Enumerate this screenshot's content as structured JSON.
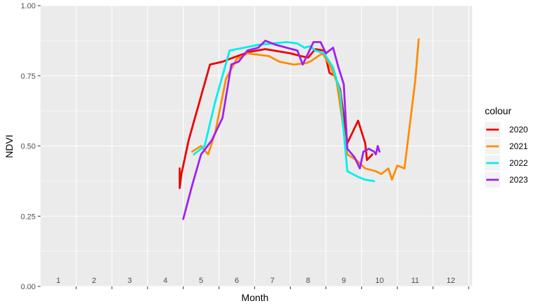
{
  "chart_data": {
    "type": "line",
    "xlabel": "Month",
    "ylabel": "NDVI",
    "ylim": [
      0,
      1
    ],
    "y_ticks": [
      "0.00",
      "0.25",
      "0.50",
      "0.75",
      "1.00"
    ],
    "month_labels": [
      "1",
      "2",
      "3",
      "4",
      "5",
      "6",
      "7",
      "8",
      "9",
      "10",
      "11",
      "12"
    ],
    "grid": true,
    "legend": {
      "title": "colour",
      "placement": "right"
    },
    "series": [
      {
        "name": "2020",
        "color": "#ee0000",
        "x": [
          4.4,
          4.4,
          4.45,
          4.65,
          5.25,
          5.6,
          5.8,
          6.35,
          6.8,
          7.5,
          7.8,
          8.0,
          8.2,
          8.45,
          8.6,
          8.75,
          8.9,
          9.1,
          9.4,
          9.6,
          9.65,
          9.8
        ],
        "y": [
          0.42,
          0.35,
          0.4,
          0.52,
          0.79,
          0.8,
          0.81,
          0.835,
          0.845,
          0.83,
          0.82,
          0.815,
          0.845,
          0.84,
          0.76,
          0.75,
          0.7,
          0.51,
          0.59,
          0.51,
          0.45,
          0.47
        ]
      },
      {
        "name": "2021",
        "color": "#ff8c00",
        "x": [
          4.75,
          5.0,
          5.2,
          5.4,
          5.7,
          6.0,
          6.3,
          6.9,
          7.2,
          7.6,
          7.95,
          8.05,
          8.4,
          8.6,
          8.8,
          9.1,
          9.35,
          9.6,
          9.9,
          10.05,
          10.25,
          10.35,
          10.5,
          10.7,
          11.0,
          11.1
        ],
        "y": [
          0.48,
          0.5,
          0.47,
          0.55,
          0.74,
          0.81,
          0.83,
          0.82,
          0.8,
          0.79,
          0.795,
          0.8,
          0.83,
          0.79,
          0.73,
          0.47,
          0.45,
          0.42,
          0.41,
          0.4,
          0.42,
          0.38,
          0.43,
          0.42,
          0.73,
          0.88
        ]
      },
      {
        "name": "2022",
        "color": "#00eeee",
        "x": [
          4.8,
          5.1,
          5.4,
          5.8,
          6.2,
          6.6,
          7.0,
          7.4,
          7.7,
          7.9,
          8.05,
          8.2,
          8.45,
          8.7,
          8.9,
          9.1,
          9.4,
          9.6,
          9.85
        ],
        "y": [
          0.47,
          0.5,
          0.66,
          0.84,
          0.85,
          0.86,
          0.865,
          0.87,
          0.865,
          0.85,
          0.855,
          0.84,
          0.83,
          0.78,
          0.69,
          0.41,
          0.39,
          0.38,
          0.375
        ]
      },
      {
        "name": "2023",
        "color": "#a020f0",
        "x": [
          4.5,
          4.75,
          5.0,
          5.3,
          5.6,
          5.85,
          6.05,
          6.3,
          6.6,
          6.8,
          7.1,
          7.4,
          7.7,
          7.85,
          8.0,
          8.15,
          8.35,
          8.5,
          8.7,
          8.85,
          9.0,
          9.1,
          9.3,
          9.45,
          9.55,
          9.7,
          9.85,
          9.9,
          9.95,
          10.0
        ],
        "y": [
          0.24,
          0.36,
          0.47,
          0.52,
          0.6,
          0.79,
          0.8,
          0.84,
          0.85,
          0.875,
          0.86,
          0.85,
          0.84,
          0.79,
          0.83,
          0.87,
          0.87,
          0.83,
          0.85,
          0.78,
          0.72,
          0.49,
          0.46,
          0.42,
          0.48,
          0.49,
          0.48,
          0.47,
          0.5,
          0.48
        ]
      }
    ]
  }
}
